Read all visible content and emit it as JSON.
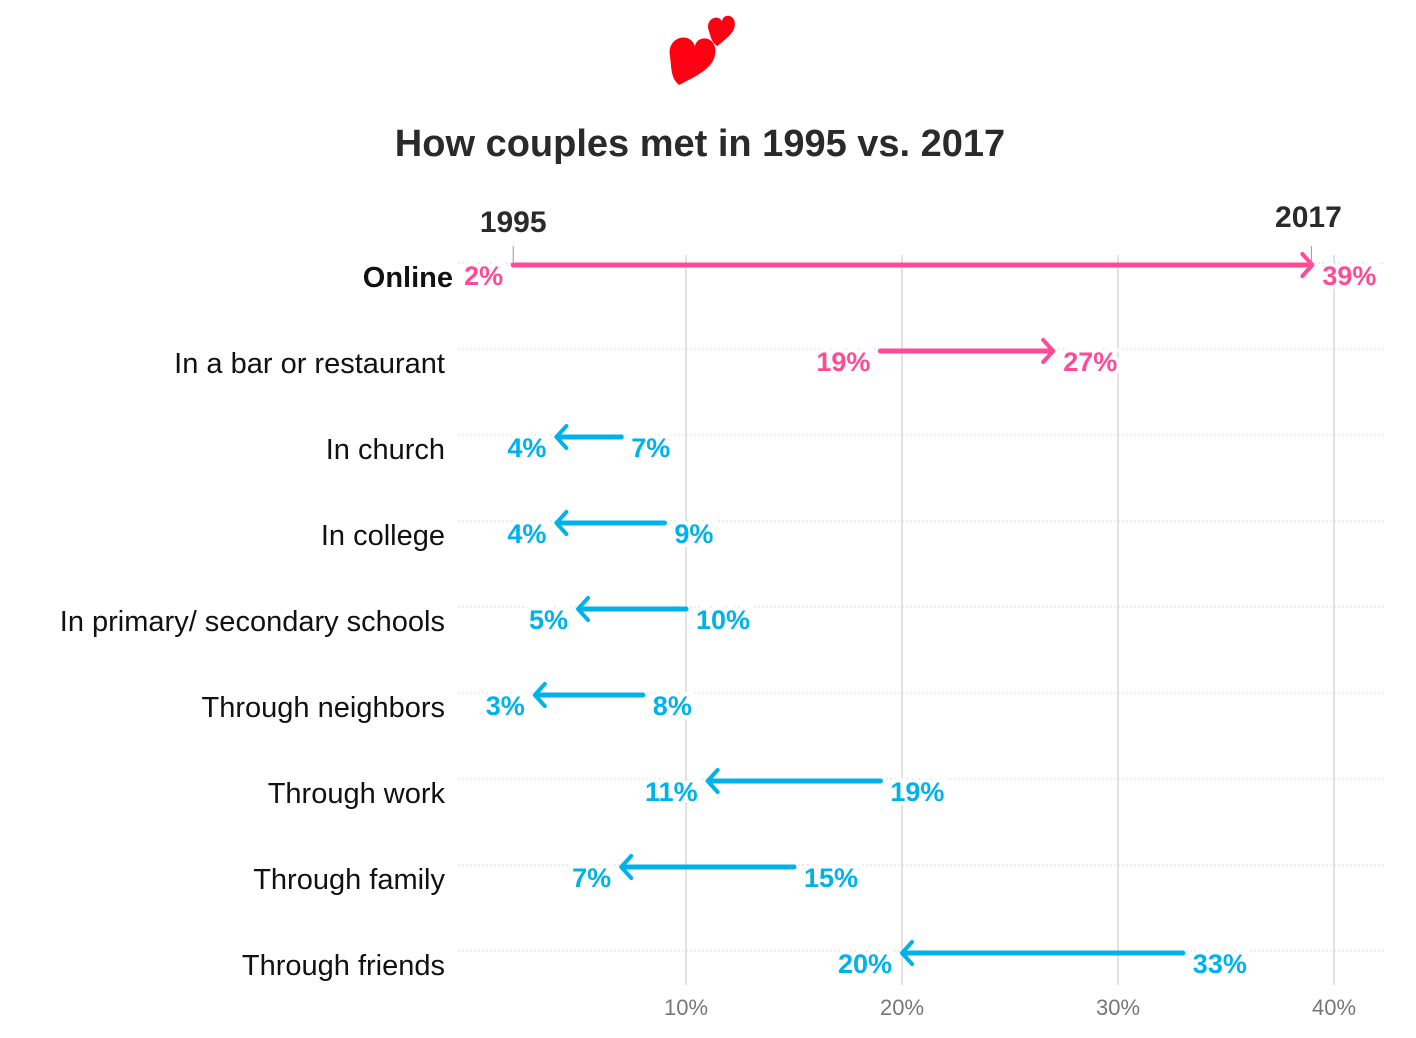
{
  "chart_data": {
    "type": "arrow-dumbbell",
    "title": "How couples met in 1995 vs. 2017",
    "start_label": "1995",
    "end_label": "2017",
    "xlim": [
      0,
      42
    ],
    "x_ticks": [
      10,
      20,
      30,
      40
    ],
    "x_tick_labels": [
      "10%",
      "20%",
      "30%",
      "40%"
    ],
    "grid": "vertical",
    "colors": {
      "increase": "#ff4b96",
      "decrease": "#00b2ec"
    },
    "rows": [
      {
        "category": "Online",
        "y1995": 2,
        "y2017": 39,
        "highlight": true
      },
      {
        "category": "In a bar or restaurant",
        "y1995": 19,
        "y2017": 27
      },
      {
        "category": "In church",
        "y1995": 7,
        "y2017": 4
      },
      {
        "category": "In college",
        "y1995": 9,
        "y2017": 4
      },
      {
        "category": "In primary/ secondary schools",
        "y1995": 10,
        "y2017": 5
      },
      {
        "category": "Through neighbors",
        "y1995": 8,
        "y2017": 3
      },
      {
        "category": "Through work",
        "y1995": 19,
        "y2017": 11
      },
      {
        "category": "Through family",
        "y1995": 15,
        "y2017": 7
      },
      {
        "category": "Through friends",
        "y1995": 33,
        "y2017": 20
      }
    ],
    "icon": "two-hearts-icon"
  }
}
